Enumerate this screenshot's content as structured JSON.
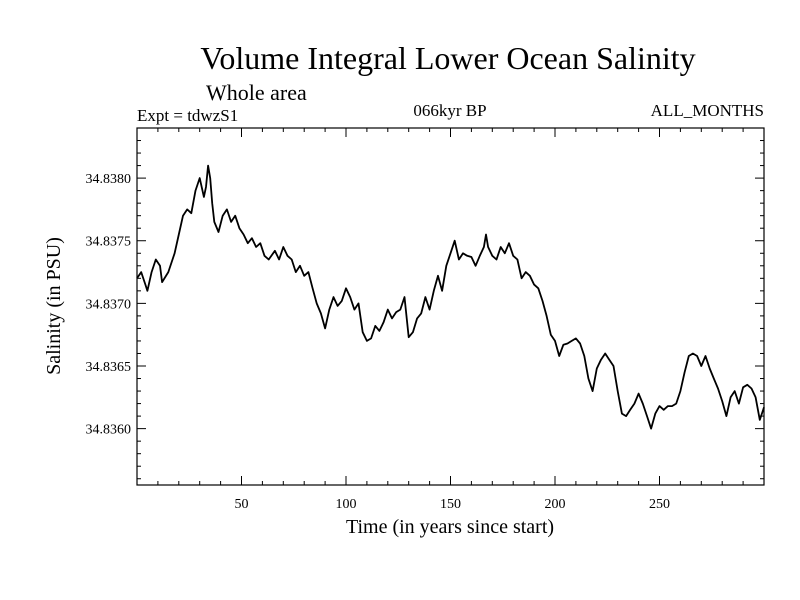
{
  "header": {
    "subtitle": "Whole area",
    "experiment": "Expt = tdwzS1",
    "epoch": "066kyr BP",
    "months": "ALL_MONTHS"
  },
  "chart_data": {
    "type": "line",
    "title": "Volume Integral Lower Ocean Salinity",
    "xlabel": "Time (in years since start)",
    "ylabel": "Salinity (in PSU)",
    "xlim": [
      0,
      300
    ],
    "ylim": [
      34.83555,
      34.8384
    ],
    "xticks": [
      50,
      100,
      150,
      200,
      250
    ],
    "yticks": [
      34.836,
      34.8365,
      34.837,
      34.8375,
      34.838
    ],
    "ytick_labels": [
      "34.8360",
      "34.8365",
      "34.8370",
      "34.8375",
      "34.8380"
    ],
    "grid": false,
    "series": [
      {
        "name": "Salinity",
        "color": "#000000",
        "points": [
          [
            0,
            34.8372
          ],
          [
            2,
            34.83725
          ],
          [
            4,
            34.83715
          ],
          [
            5,
            34.8371
          ],
          [
            7,
            34.83725
          ],
          [
            9,
            34.83735
          ],
          [
            11,
            34.8373
          ],
          [
            12,
            34.83717
          ],
          [
            15,
            34.83725
          ],
          [
            18,
            34.8374
          ],
          [
            20,
            34.83755
          ],
          [
            22,
            34.8377
          ],
          [
            24,
            34.83775
          ],
          [
            26,
            34.83772
          ],
          [
            28,
            34.8379
          ],
          [
            30,
            34.838
          ],
          [
            32,
            34.83785
          ],
          [
            33,
            34.83793
          ],
          [
            34,
            34.8381
          ],
          [
            35,
            34.838
          ],
          [
            36,
            34.8378
          ],
          [
            37,
            34.83765
          ],
          [
            39,
            34.83757
          ],
          [
            41,
            34.8377
          ],
          [
            43,
            34.83775
          ],
          [
            45,
            34.83765
          ],
          [
            47,
            34.8377
          ],
          [
            49,
            34.8376
          ],
          [
            51,
            34.83755
          ],
          [
            53,
            34.83748
          ],
          [
            55,
            34.83752
          ],
          [
            57,
            34.83745
          ],
          [
            59,
            34.83748
          ],
          [
            61,
            34.83738
          ],
          [
            63,
            34.83735
          ],
          [
            66,
            34.83742
          ],
          [
            68,
            34.83735
          ],
          [
            70,
            34.83745
          ],
          [
            72,
            34.83738
          ],
          [
            74,
            34.83735
          ],
          [
            76,
            34.83725
          ],
          [
            78,
            34.8373
          ],
          [
            80,
            34.83722
          ],
          [
            82,
            34.83725
          ],
          [
            84,
            34.83712
          ],
          [
            86,
            34.837
          ],
          [
            88,
            34.83692
          ],
          [
            90,
            34.8368
          ],
          [
            92,
            34.83695
          ],
          [
            94,
            34.83705
          ],
          [
            96,
            34.83698
          ],
          [
            98,
            34.83702
          ],
          [
            100,
            34.83712
          ],
          [
            102,
            34.83705
          ],
          [
            104,
            34.83695
          ],
          [
            106,
            34.837
          ],
          [
            108,
            34.83677
          ],
          [
            110,
            34.8367
          ],
          [
            112,
            34.83672
          ],
          [
            114,
            34.83682
          ],
          [
            116,
            34.83678
          ],
          [
            118,
            34.83685
          ],
          [
            120,
            34.83695
          ],
          [
            122,
            34.83688
          ],
          [
            124,
            34.83693
          ],
          [
            126,
            34.83695
          ],
          [
            128,
            34.83705
          ],
          [
            130,
            34.83673
          ],
          [
            132,
            34.83677
          ],
          [
            134,
            34.83688
          ],
          [
            136,
            34.83692
          ],
          [
            138,
            34.83705
          ],
          [
            140,
            34.83695
          ],
          [
            142,
            34.8371
          ],
          [
            144,
            34.83722
          ],
          [
            146,
            34.8371
          ],
          [
            148,
            34.8373
          ],
          [
            150,
            34.8374
          ],
          [
            152,
            34.8375
          ],
          [
            154,
            34.83735
          ],
          [
            156,
            34.8374
          ],
          [
            158,
            34.83738
          ],
          [
            160,
            34.83737
          ],
          [
            162,
            34.8373
          ],
          [
            164,
            34.83738
          ],
          [
            166,
            34.83745
          ],
          [
            167,
            34.83755
          ],
          [
            168,
            34.83745
          ],
          [
            170,
            34.83738
          ],
          [
            172,
            34.83735
          ],
          [
            174,
            34.83745
          ],
          [
            176,
            34.8374
          ],
          [
            178,
            34.83748
          ],
          [
            180,
            34.83738
          ],
          [
            182,
            34.83735
          ],
          [
            184,
            34.8372
          ],
          [
            186,
            34.83725
          ],
          [
            188,
            34.83722
          ],
          [
            190,
            34.83715
          ],
          [
            192,
            34.83712
          ],
          [
            194,
            34.83702
          ],
          [
            196,
            34.8369
          ],
          [
            198,
            34.83675
          ],
          [
            200,
            34.8367
          ],
          [
            202,
            34.83658
          ],
          [
            204,
            34.83667
          ],
          [
            206,
            34.83668
          ],
          [
            208,
            34.8367
          ],
          [
            210,
            34.83672
          ],
          [
            212,
            34.83668
          ],
          [
            214,
            34.83658
          ],
          [
            216,
            34.8364
          ],
          [
            218,
            34.8363
          ],
          [
            220,
            34.83648
          ],
          [
            222,
            34.83655
          ],
          [
            224,
            34.8366
          ],
          [
            226,
            34.83655
          ],
          [
            228,
            34.8365
          ],
          [
            230,
            34.8363
          ],
          [
            232,
            34.83612
          ],
          [
            234,
            34.8361
          ],
          [
            236,
            34.83615
          ],
          [
            238,
            34.8362
          ],
          [
            240,
            34.83628
          ],
          [
            242,
            34.8362
          ],
          [
            244,
            34.8361
          ],
          [
            246,
            34.836
          ],
          [
            248,
            34.83612
          ],
          [
            250,
            34.83618
          ],
          [
            252,
            34.83615
          ],
          [
            254,
            34.83618
          ],
          [
            256,
            34.83618
          ],
          [
            258,
            34.8362
          ],
          [
            260,
            34.8363
          ],
          [
            262,
            34.83645
          ],
          [
            264,
            34.83658
          ],
          [
            266,
            34.8366
          ],
          [
            268,
            34.83658
          ],
          [
            270,
            34.8365
          ],
          [
            272,
            34.83658
          ],
          [
            274,
            34.83648
          ],
          [
            276,
            34.8364
          ],
          [
            278,
            34.83632
          ],
          [
            280,
            34.83622
          ],
          [
            282,
            34.8361
          ],
          [
            284,
            34.83625
          ],
          [
            286,
            34.8363
          ],
          [
            288,
            34.8362
          ],
          [
            290,
            34.83633
          ],
          [
            292,
            34.83635
          ],
          [
            294,
            34.83632
          ],
          [
            296,
            34.83625
          ],
          [
            298,
            34.83607
          ],
          [
            299,
            34.83612
          ],
          [
            300,
            34.83617
          ]
        ]
      }
    ]
  }
}
